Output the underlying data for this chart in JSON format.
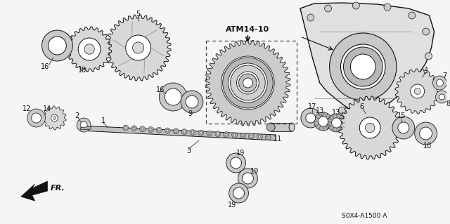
{
  "background_color": "#f5f5f5",
  "diagram_label": "ATM14-10",
  "part_number": "S0X4-A1500 A",
  "fr_label": "FR.",
  "text_color": "#111111",
  "line_color": "#111111",
  "part_fill": "#d8d8d8",
  "part_edge": "#111111",
  "dark_fill": "#888888",
  "white": "#ffffff",
  "layout": {
    "xlim": [
      0,
      640
    ],
    "ylim": [
      0,
      319
    ]
  }
}
